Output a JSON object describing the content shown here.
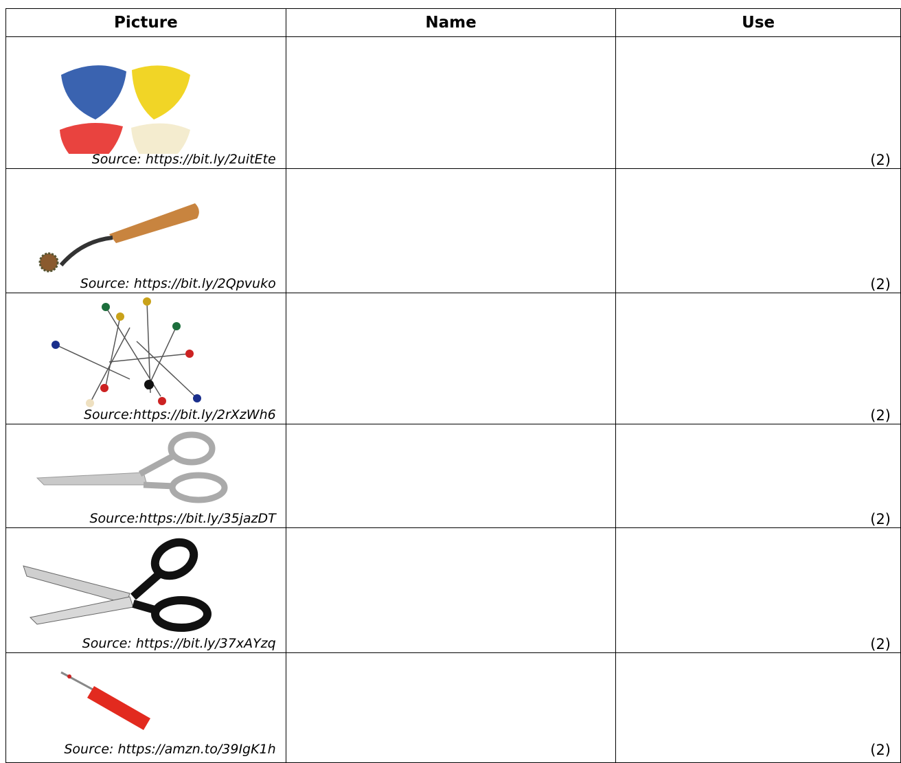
{
  "table": {
    "header": [
      "Picture",
      "Name",
      "Use"
    ],
    "rows": [
      {
        "source": "Source: https://bit.ly/2uitEte",
        "marks": "(2)"
      },
      {
        "source": "Source: https://bit.ly/2Qpvuko",
        "marks": "(2)"
      },
      {
        "source": "Source:https://bit.ly/2rXzWh6",
        "marks": "(2)"
      },
      {
        "source": "Source:https://bit.ly/35jazDT",
        "marks": "(2)"
      },
      {
        "source": "Source: https://bit.ly/37xAYzq",
        "marks": "(2)"
      },
      {
        "source": "Source: https://amzn.to/39IgK1h",
        "marks": "(2)"
      }
    ]
  }
}
